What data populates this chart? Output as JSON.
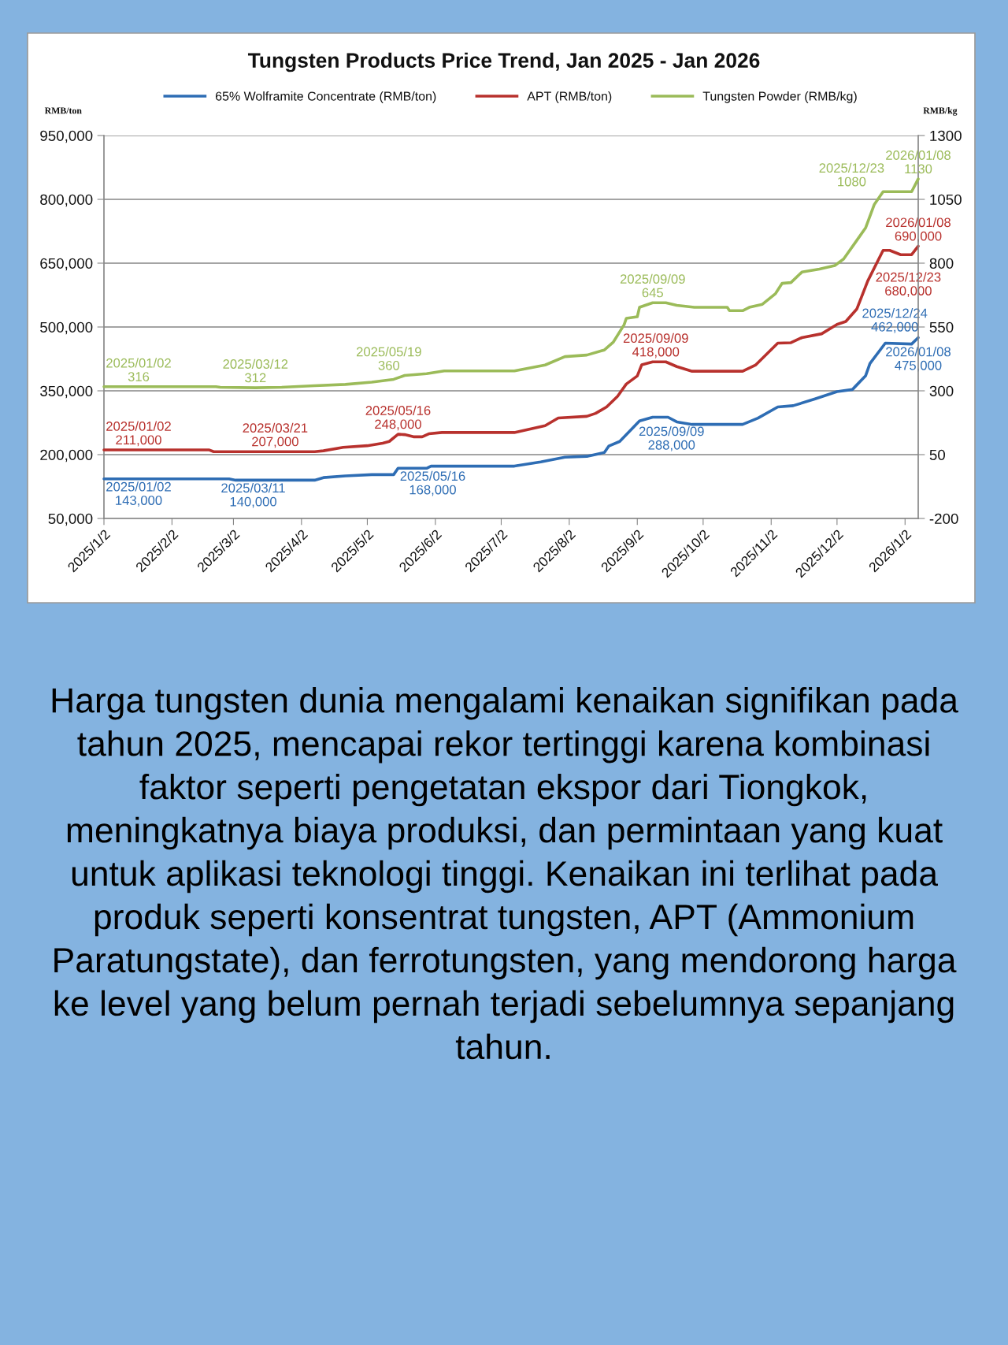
{
  "chart_data": {
    "type": "line",
    "title": "Tungsten Products Price Trend, Jan 2025 - Jan 2026",
    "ylabel": "RMB/ton",
    "y2label": "RMB/kg",
    "xlim": [
      "2025-01-02",
      "2026-01-08"
    ],
    "xticks": [
      {
        "value": "2025-01-02",
        "label": "2025/1/2"
      },
      {
        "value": "2025-02-02",
        "label": "2025/2/2"
      },
      {
        "value": "2025-03-02",
        "label": "2025/3/2"
      },
      {
        "value": "2025-04-02",
        "label": "2025/4/2"
      },
      {
        "value": "2025-05-02",
        "label": "2025/5/2"
      },
      {
        "value": "2025-06-02",
        "label": "2025/6/2"
      },
      {
        "value": "2025-07-02",
        "label": "2025/7/2"
      },
      {
        "value": "2025-08-02",
        "label": "2025/8/2"
      },
      {
        "value": "2025-09-02",
        "label": "2025/9/2"
      },
      {
        "value": "2025-10-02",
        "label": "2025/10/2"
      },
      {
        "value": "2025-11-02",
        "label": "2025/11/2"
      },
      {
        "value": "2025-12-02",
        "label": "2025/12/2"
      },
      {
        "value": "2026-01-02",
        "label": "2026/1/2"
      }
    ],
    "ylim": [
      50000,
      950000
    ],
    "yticks": [
      {
        "value": 50000,
        "label": "50,000"
      },
      {
        "value": 200000,
        "label": "200,000"
      },
      {
        "value": 350000,
        "label": "350,000"
      },
      {
        "value": 500000,
        "label": "500,000"
      },
      {
        "value": 650000,
        "label": "650,000"
      },
      {
        "value": 800000,
        "label": "800,000"
      },
      {
        "value": 950000,
        "label": "950,000"
      }
    ],
    "y2lim": [
      -200,
      1300
    ],
    "y2ticks": [
      -200,
      50,
      300,
      550,
      800,
      1050,
      1300
    ],
    "grid": "y",
    "legend": "top",
    "line_style": "solid",
    "series": [
      {
        "name": "65% Wolframite Concentrate (RMB/ton)",
        "color": "#2e6db4",
        "x": [
          "2025-01-02",
          "2025-02-28",
          "2025-03-03",
          "2025-03-11",
          "2025-04-08",
          "2025-04-12",
          "2025-04-22",
          "2025-05-04",
          "2025-05-14",
          "2025-05-16",
          "2025-05-29",
          "2025-05-31",
          "2025-07-08",
          "2025-07-20",
          "2025-07-31",
          "2025-08-10",
          "2025-08-18",
          "2025-08-20",
          "2025-08-25",
          "2025-09-03",
          "2025-09-09",
          "2025-09-16",
          "2025-09-20",
          "2025-09-27",
          "2025-10-20",
          "2025-10-27",
          "2025-11-05",
          "2025-11-12",
          "2025-11-22",
          "2025-12-02",
          "2025-12-09",
          "2025-12-15",
          "2025-12-17",
          "2025-12-24",
          "2026-01-05",
          "2026-01-08"
        ],
        "values": [
          143000,
          143000,
          140000,
          140000,
          140000,
          146000,
          150000,
          153000,
          153000,
          168000,
          168000,
          173000,
          173000,
          183000,
          194000,
          196000,
          205000,
          220000,
          231000,
          279000,
          288000,
          288000,
          277000,
          271000,
          271000,
          286000,
          312000,
          315000,
          331000,
          348000,
          353000,
          385000,
          414000,
          462000,
          460000,
          475000
        ],
        "value_labels": [
          "2025/01/02\n143,000",
          null,
          null,
          "2025/03/11\n140,000",
          null,
          null,
          null,
          null,
          null,
          "2025/05/16\n168,000",
          null,
          null,
          null,
          null,
          null,
          null,
          null,
          null,
          null,
          null,
          "2025/09/09\n288,000",
          null,
          null,
          null,
          null,
          null,
          null,
          null,
          null,
          null,
          null,
          null,
          null,
          "2025/12/24\n462,000",
          null,
          "2026/01/08\n475,000"
        ]
      },
      {
        "name": "APT (RMB/ton)",
        "color": "#b8312d",
        "x": [
          "2025-01-02",
          "2025-02-19",
          "2025-02-21",
          "2025-03-21",
          "2025-04-08",
          "2025-04-12",
          "2025-04-21",
          "2025-05-02",
          "2025-05-09",
          "2025-05-12",
          "2025-05-16",
          "2025-05-19",
          "2025-05-23",
          "2025-05-27",
          "2025-05-30",
          "2025-06-05",
          "2025-07-08",
          "2025-07-22",
          "2025-07-28",
          "2025-08-10",
          "2025-08-14",
          "2025-08-19",
          "2025-08-24",
          "2025-08-28",
          "2025-09-02",
          "2025-09-04",
          "2025-09-09",
          "2025-09-15",
          "2025-09-20",
          "2025-09-27",
          "2025-10-20",
          "2025-10-26",
          "2025-11-05",
          "2025-11-11",
          "2025-11-16",
          "2025-11-25",
          "2025-12-02",
          "2025-12-06",
          "2025-12-11",
          "2025-12-16",
          "2025-12-23",
          "2025-12-26",
          "2025-12-31",
          "2026-01-05",
          "2026-01-08"
        ],
        "values": [
          211000,
          211000,
          207000,
          207000,
          207000,
          209000,
          217000,
          221000,
          227000,
          231000,
          248000,
          247000,
          242000,
          242000,
          249000,
          252000,
          252000,
          268000,
          286000,
          290000,
          297000,
          312000,
          337000,
          366000,
          385000,
          411000,
          418000,
          418000,
          407000,
          396000,
          396000,
          411000,
          462000,
          463000,
          475000,
          484000,
          506000,
          513000,
          542000,
          608000,
          680000,
          680000,
          670000,
          670000,
          690000
        ],
        "value_labels": [
          "2025/01/02\n211,000",
          null,
          null,
          "2025/03/21\n207,000",
          null,
          null,
          null,
          null,
          null,
          null,
          "2025/05/16\n248,000",
          null,
          null,
          null,
          null,
          null,
          null,
          null,
          null,
          null,
          null,
          null,
          null,
          null,
          null,
          null,
          "2025/09/09\n418,000",
          null,
          null,
          null,
          null,
          null,
          null,
          null,
          null,
          null,
          null,
          null,
          null,
          null,
          "2025/12/23\n680,000",
          null,
          null,
          null,
          "2026/01/08\n690,000"
        ]
      },
      {
        "name": "Tungsten Powder (RMB/kg)",
        "color": "#9bbb59",
        "axis": "y2",
        "x": [
          "2025-01-02",
          "2025-02-22",
          "2025-02-24",
          "2025-03-12",
          "2025-03-24",
          "2025-04-08",
          "2025-04-22",
          "2025-05-04",
          "2025-05-14",
          "2025-05-19",
          "2025-05-29",
          "2025-06-06",
          "2025-07-08",
          "2025-07-22",
          "2025-07-31",
          "2025-08-10",
          "2025-08-18",
          "2025-08-22",
          "2025-08-27",
          "2025-08-28",
          "2025-09-02",
          "2025-09-03",
          "2025-09-09",
          "2025-09-15",
          "2025-09-20",
          "2025-09-28",
          "2025-10-13",
          "2025-10-14",
          "2025-10-20",
          "2025-10-23",
          "2025-10-29",
          "2025-11-04",
          "2025-11-07",
          "2025-11-11",
          "2025-11-16",
          "2025-11-24",
          "2025-12-01",
          "2025-12-05",
          "2025-12-11",
          "2025-12-15",
          "2025-12-19",
          "2025-12-23",
          "2026-01-05",
          "2026-01-08"
        ],
        "values": [
          316,
          316,
          314,
          312,
          314,
          320,
          325,
          334,
          345,
          360,
          367,
          378,
          378,
          401,
          434,
          440,
          460,
          490,
          559,
          584,
          590,
          627,
          645,
          645,
          635,
          627,
          627,
          614,
          614,
          627,
          639,
          681,
          721,
          724,
          765,
          777,
          791,
          816,
          889,
          938,
          1030,
          1080,
          1080,
          1130
        ],
        "value_labels": [
          "2025/01/02\n316",
          null,
          null,
          "2025/03/12\n312",
          null,
          null,
          null,
          null,
          null,
          "2025/05/19\n360",
          null,
          null,
          null,
          null,
          null,
          null,
          null,
          null,
          null,
          null,
          null,
          null,
          "2025/09/09\n645",
          null,
          null,
          null,
          null,
          null,
          null,
          null,
          null,
          null,
          null,
          null,
          null,
          null,
          null,
          null,
          null,
          null,
          null,
          "2025/12/23\n1080",
          null,
          "2026/01/08\n1130"
        ]
      }
    ],
    "annotations": [
      "Harga tungsten dunia mengalami kenaikan signifikan pada tahun 2025, mencapai rekor tertinggi karena kombinasi faktor seperti pengetatan ekspor dari Tiongkok, meningkatnya biaya produksi, dan permintaan yang kuat untuk aplikasi teknologi tinggi. Kenaikan ini terlihat pada produk seperti konsentrat tungsten, APT (Ammonium Paratungstate), dan ferrotungsten, yang mendorong harga ke level yang belum pernah terjadi sebelumnya sepanjang tahun."
    ]
  }
}
